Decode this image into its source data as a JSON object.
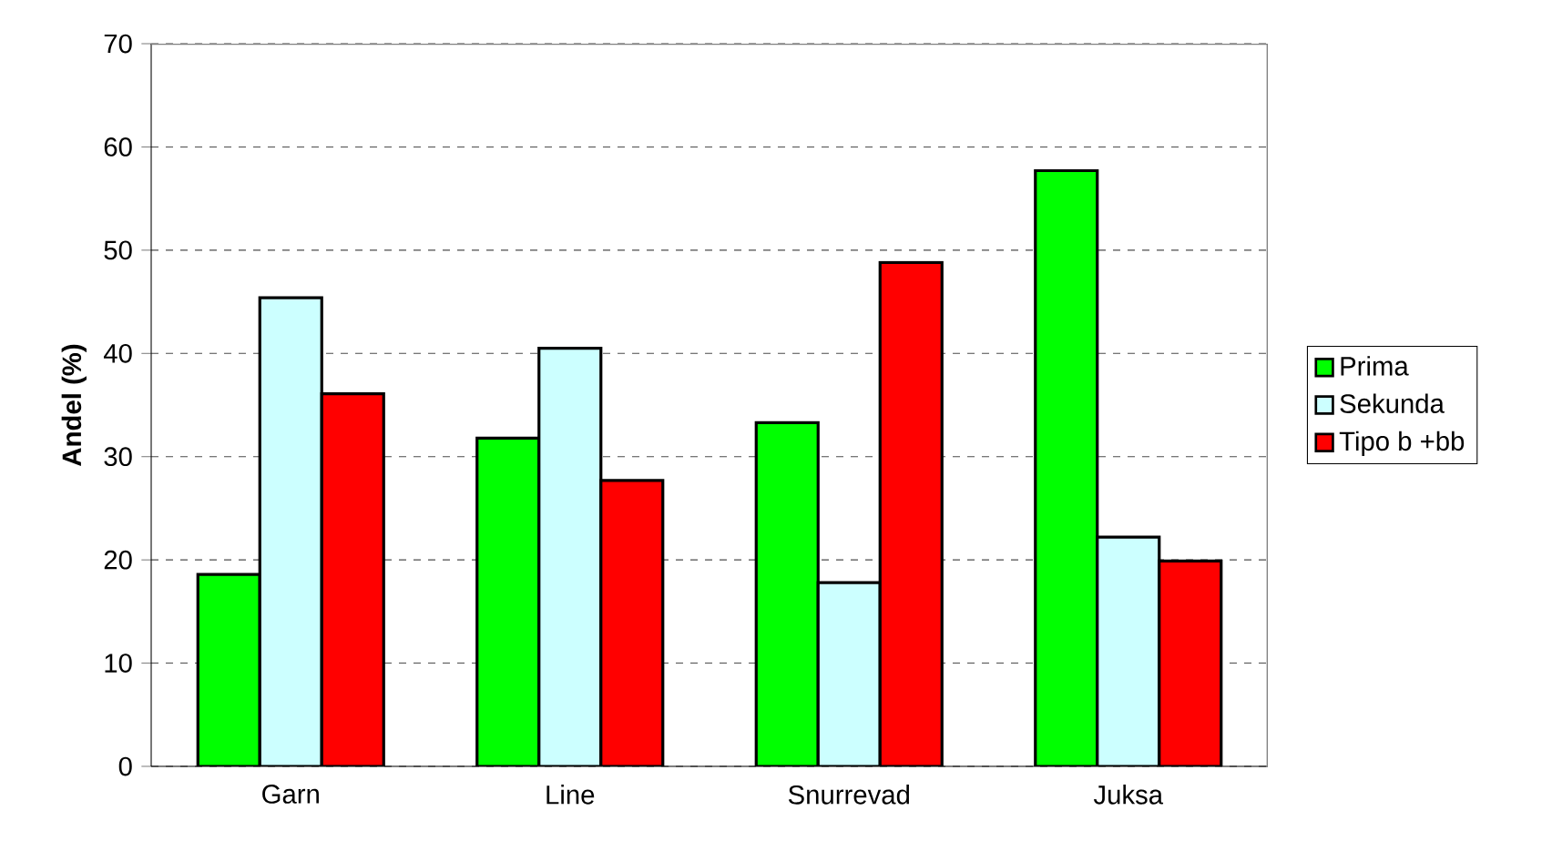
{
  "chart_data": {
    "type": "bar",
    "ylabel": "Andel (%)",
    "categories": [
      "Garn",
      "Line",
      "Snurrevad",
      "Juksa"
    ],
    "series": [
      {
        "name": "Prima",
        "color": "#00ff00",
        "values": [
          18.6,
          31.8,
          33.3,
          57.7
        ]
      },
      {
        "name": "Sekunda",
        "color": "#ccffff",
        "values": [
          45.4,
          40.5,
          17.8,
          22.2
        ]
      },
      {
        "name": "Tipo b +bb",
        "color": "#ff0000",
        "values": [
          36.1,
          27.7,
          48.8,
          19.9
        ]
      }
    ],
    "ylim": [
      0,
      70
    ],
    "yticks": [
      0,
      10,
      20,
      30,
      40,
      50,
      60,
      70
    ],
    "grid": "y",
    "legend": "right"
  }
}
